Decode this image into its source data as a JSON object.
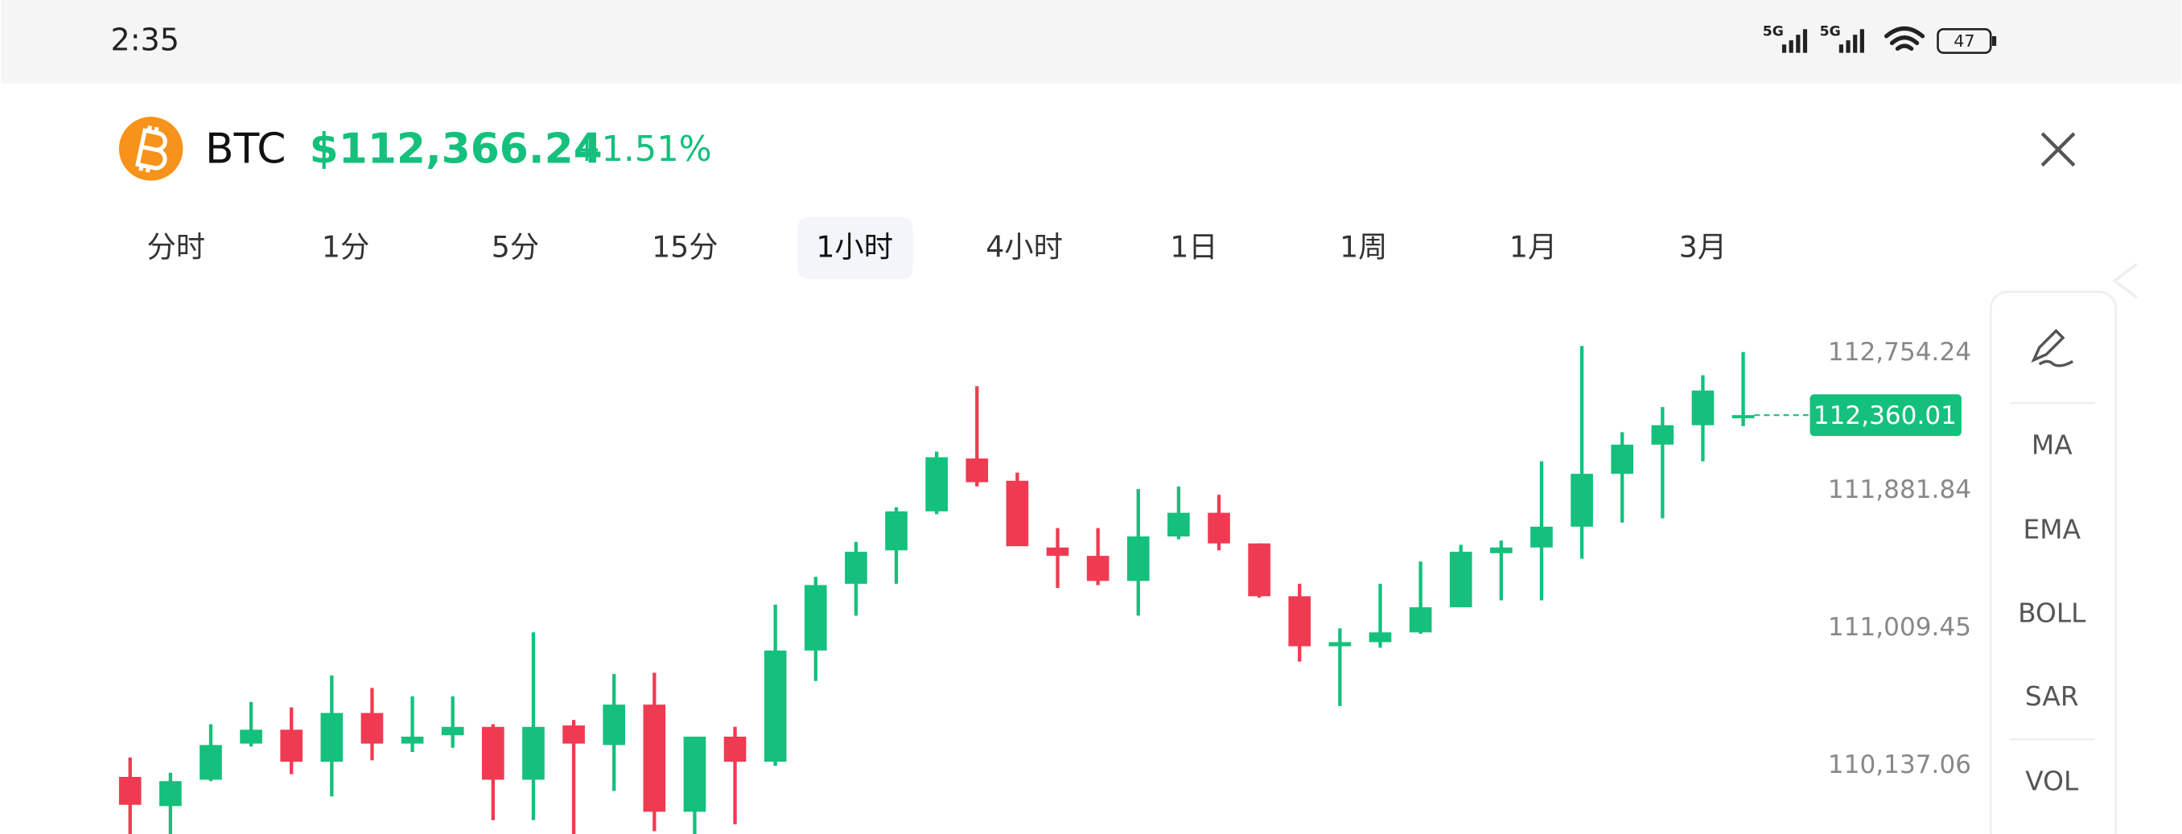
{
  "status_bar": {
    "time": "2:35",
    "network": [
      "5G",
      "5G"
    ],
    "battery": "47"
  },
  "header": {
    "symbol": "BTC",
    "price": "$112,366.24",
    "change": "+1.51%"
  },
  "tabs": {
    "items": [
      "分时",
      "1分",
      "5分",
      "15分",
      "1小时",
      "4小时",
      "1日",
      "1周",
      "1月",
      "3月"
    ],
    "selected": 4
  },
  "chart_data": {
    "type": "candlestick",
    "open": [
      110067,
      109882,
      110049,
      110278,
      110366,
      110163,
      110472,
      110278,
      110331,
      110384,
      110049,
      110393,
      110269,
      110525,
      109846,
      110322,
      110163,
      110868,
      111291,
      111503,
      111750,
      112085,
      111944,
      111521,
      111468,
      111309,
      111591,
      111741,
      111547,
      111212,
      110895,
      110921,
      110983,
      111142,
      111485,
      111521,
      111653,
      111988,
      112173,
      112296,
      112340
    ],
    "high": [
      110190,
      110093,
      110401,
      110542,
      110507,
      110710,
      110631,
      110578,
      110578,
      110401,
      110983,
      110428,
      110719,
      110727,
      110322,
      110384,
      111159,
      111335,
      111556,
      111776,
      112129,
      112543,
      111996,
      111644,
      111644,
      111891,
      111908,
      111855,
      111547,
      111291,
      111009,
      111291,
      111432,
      111538,
      111565,
      112067,
      112798,
      112252,
      112411,
      112613,
      112760
    ],
    "low": [
      109705,
      109705,
      110040,
      110260,
      110084,
      109943,
      110172,
      110225,
      110252,
      109793,
      109793,
      109705,
      109978,
      109723,
      109705,
      109767,
      110137,
      110675,
      111089,
      111291,
      111732,
      111908,
      111529,
      111265,
      111283,
      111089,
      111573,
      111503,
      111203,
      110798,
      110516,
      110886,
      110974,
      111142,
      111186,
      111186,
      111450,
      111679,
      111706,
      112067,
      112290
    ],
    "close": [
      109890,
      110040,
      110269,
      110366,
      110163,
      110472,
      110278,
      110322,
      110384,
      110049,
      110384,
      110278,
      110525,
      109846,
      110322,
      110163,
      110868,
      111283,
      111494,
      111750,
      112093,
      111935,
      111529,
      111468,
      111309,
      111591,
      111741,
      111547,
      111212,
      110895,
      110921,
      110983,
      111142,
      111494,
      111521,
      111653,
      111988,
      112173,
      112296,
      112516,
      112360.01
    ],
    "up_color": "#15c07c",
    "down_color": "#ef3b52",
    "ylim": [
      109705,
      113141
    ],
    "yticks": [
      {
        "value": 110137.06,
        "label": "110,137.06"
      },
      {
        "value": 111009.45,
        "label": "111,009.45"
      },
      {
        "value": 111881.84,
        "label": "111,881.84"
      },
      {
        "value": 112754.24,
        "label": "112,754.24"
      }
    ],
    "last_price_label": "112,360.01"
  },
  "tools": {
    "indicators": [
      "MA",
      "EMA",
      "BOLL",
      "SAR",
      "VOL"
    ]
  }
}
